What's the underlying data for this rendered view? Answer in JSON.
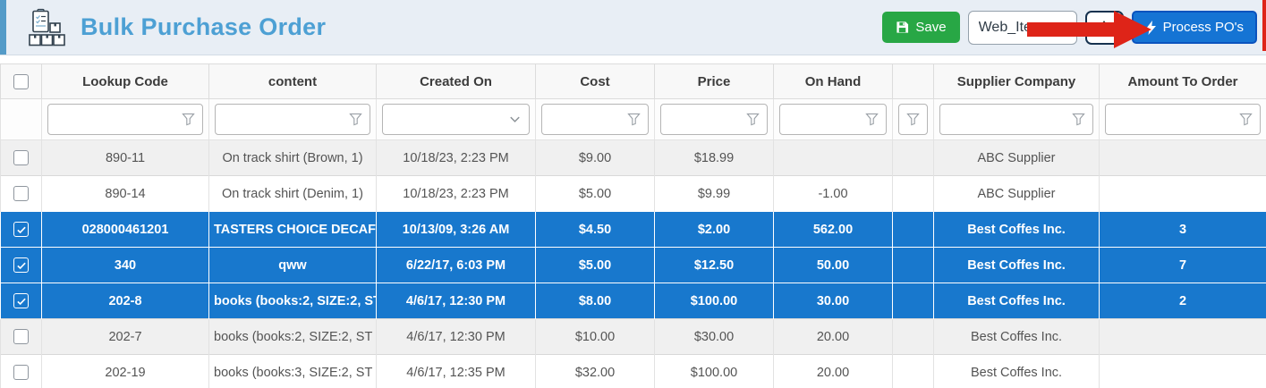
{
  "header": {
    "title": "Bulk Purchase Order",
    "save_label": "Save",
    "po_name_value": "Web_Items",
    "process_label": "Process PO's"
  },
  "table": {
    "columns": [
      {
        "label": "Lookup Code",
        "filter": "funnel"
      },
      {
        "label": "content",
        "filter": "funnel"
      },
      {
        "label": "Created On",
        "filter": "chevron"
      },
      {
        "label": "Cost",
        "filter": "funnel"
      },
      {
        "label": "Price",
        "filter": "funnel"
      },
      {
        "label": "On Hand",
        "filter": "funnel"
      },
      {
        "label": "",
        "filter": "funnel-compact"
      },
      {
        "label": "Supplier Company",
        "filter": "funnel"
      },
      {
        "label": "Amount To Order",
        "filter": "funnel"
      }
    ],
    "rows": [
      {
        "selected": false,
        "stripe": "gray",
        "cells": [
          "890-11",
          "On track shirt (Brown, 1)",
          "10/18/23, 2:23 PM",
          "$9.00",
          "$18.99",
          "",
          "",
          "ABC Supplier",
          ""
        ]
      },
      {
        "selected": false,
        "stripe": "white",
        "cells": [
          "890-14",
          "On track shirt (Denim, 1)",
          "10/18/23, 2:23 PM",
          "$5.00",
          "$9.99",
          "-1.00",
          "",
          "ABC Supplier",
          ""
        ]
      },
      {
        "selected": true,
        "stripe": "blue",
        "cells": [
          "028000461201",
          "TASTERS CHOICE DECAFE",
          "10/13/09, 3:26 AM",
          "$4.50",
          "$2.00",
          "562.00",
          "",
          "Best Coffes Inc.",
          "3"
        ]
      },
      {
        "selected": true,
        "stripe": "blue",
        "cells": [
          "340",
          "qww",
          "6/22/17, 6:03 PM",
          "$5.00",
          "$12.50",
          "50.00",
          "",
          "Best Coffes Inc.",
          "7"
        ]
      },
      {
        "selected": true,
        "stripe": "blue",
        "cells": [
          "202-8",
          "books (books:2, SIZE:2, ST",
          "4/6/17, 12:30 PM",
          "$8.00",
          "$100.00",
          "30.00",
          "",
          "Best Coffes Inc.",
          "2"
        ]
      },
      {
        "selected": false,
        "stripe": "gray",
        "cells": [
          "202-7",
          "books (books:2, SIZE:2, ST",
          "4/6/17, 12:30 PM",
          "$10.00",
          "$30.00",
          "20.00",
          "",
          "Best Coffes Inc.",
          ""
        ]
      },
      {
        "selected": false,
        "stripe": "white",
        "cells": [
          "202-19",
          "books (books:3, SIZE:2, ST",
          "4/6/17, 12:35 PM",
          "$32.00",
          "$100.00",
          "20.00",
          "",
          "Best Coffes Inc.",
          ""
        ]
      }
    ]
  },
  "icons": {
    "header_icon": "purchase-order-boxes-icon",
    "save_icon": "floppy-disk-icon",
    "process_icon": "lightning-bolt-icon",
    "filter_icon": "funnel-icon",
    "created_on_filter_icon": "chevron-down-icon",
    "annotation": "red-arrow-pointer"
  },
  "colors": {
    "accent_blue": "#549bc8",
    "title_blue": "#4da0d4",
    "save_green": "#28a745",
    "process_blue": "#1574d4",
    "selected_row": "#1878cd",
    "row_gray": "#f0f0f0",
    "annotation_red": "#de2418"
  }
}
